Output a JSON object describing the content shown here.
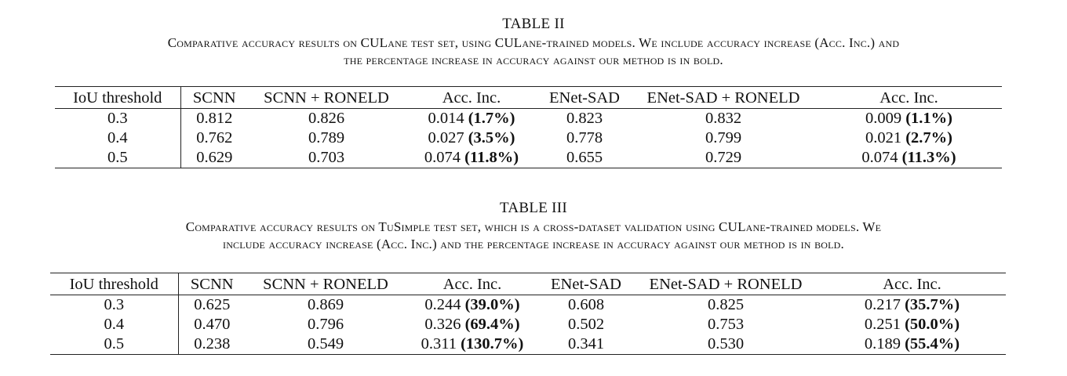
{
  "table2": {
    "number": "TABLE II",
    "caption_line1": "Comparative accuracy results on CULane test set, using CULane-trained models. We include accuracy increase (Acc. Inc.) and",
    "caption_line2": "the percentage increase in accuracy against our method is in bold.",
    "headers": [
      "IoU threshold",
      "SCNN",
      "SCNN + RONELD",
      "Acc. Inc.",
      "ENet-SAD",
      "ENet-SAD + RONELD",
      "Acc. Inc."
    ],
    "rows": [
      {
        "iou": "0.3",
        "scnn": "0.812",
        "scnn_roneld": "0.826",
        "inc1": "0.014",
        "pct1": "(1.7%)",
        "enet": "0.823",
        "enet_roneld": "0.832",
        "inc2": "0.009",
        "pct2": "(1.1%)"
      },
      {
        "iou": "0.4",
        "scnn": "0.762",
        "scnn_roneld": "0.789",
        "inc1": "0.027",
        "pct1": "(3.5%)",
        "enet": "0.778",
        "enet_roneld": "0.799",
        "inc2": "0.021",
        "pct2": "(2.7%)"
      },
      {
        "iou": "0.5",
        "scnn": "0.629",
        "scnn_roneld": "0.703",
        "inc1": "0.074",
        "pct1": "(11.8%)",
        "enet": "0.655",
        "enet_roneld": "0.729",
        "inc2": "0.074",
        "pct2": "(11.3%)"
      }
    ]
  },
  "table3": {
    "number": "TABLE III",
    "caption_line1": "Comparative accuracy results on TuSimple test set, which is a cross-dataset validation using CULane-trained models. We",
    "caption_line2": "include accuracy increase (Acc. Inc.) and the percentage increase in accuracy against our method is in bold.",
    "headers": [
      "IoU threshold",
      "SCNN",
      "SCNN + RONELD",
      "Acc. Inc.",
      "ENet-SAD",
      "ENet-SAD + RONELD",
      "Acc. Inc."
    ],
    "rows": [
      {
        "iou": "0.3",
        "scnn": "0.625",
        "scnn_roneld": "0.869",
        "inc1": "0.244",
        "pct1": "(39.0%)",
        "enet": "0.608",
        "enet_roneld": "0.825",
        "inc2": "0.217",
        "pct2": "(35.7%)"
      },
      {
        "iou": "0.4",
        "scnn": "0.470",
        "scnn_roneld": "0.796",
        "inc1": "0.326",
        "pct1": "(69.4%)",
        "enet": "0.502",
        "enet_roneld": "0.753",
        "inc2": "0.251",
        "pct2": "(50.0%)"
      },
      {
        "iou": "0.5",
        "scnn": "0.238",
        "scnn_roneld": "0.549",
        "inc1": "0.311",
        "pct1": "(130.7%)",
        "enet": "0.341",
        "enet_roneld": "0.530",
        "inc2": "0.189",
        "pct2": "(55.4%)"
      }
    ]
  }
}
